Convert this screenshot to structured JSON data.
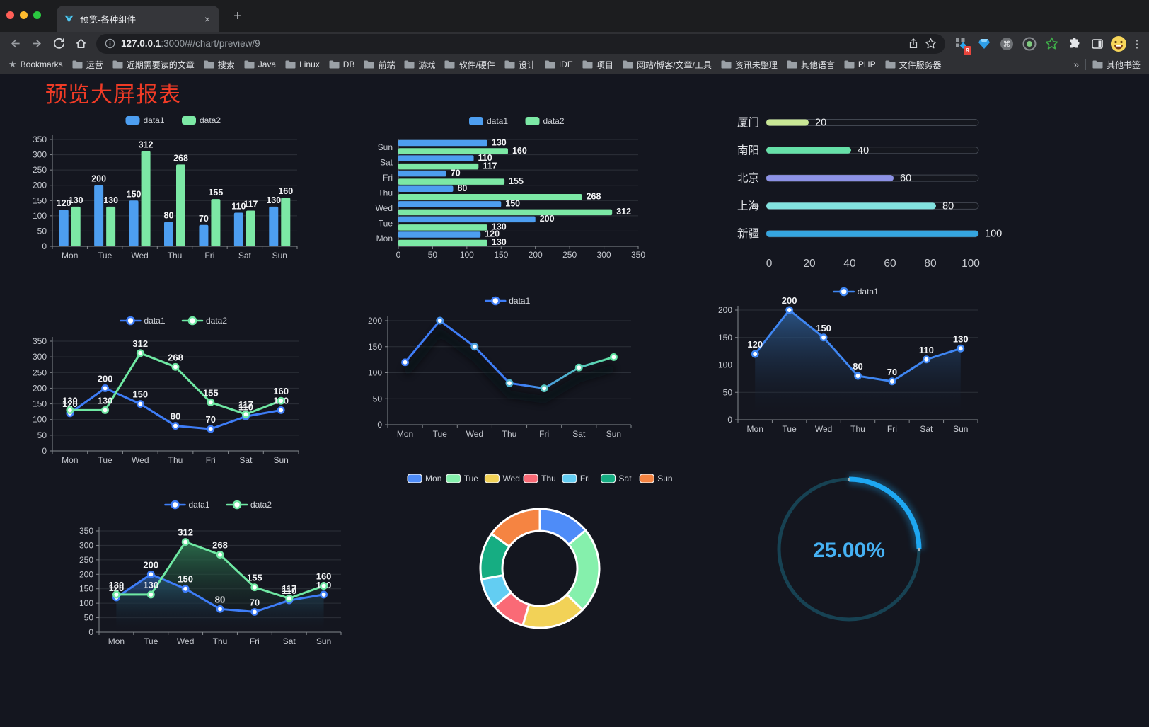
{
  "browser": {
    "tab_title": "预览-各种组件",
    "url_host": "127.0.0.1",
    "url_path": ":3000/#/chart/preview/9",
    "bookmarks_label": "Bookmarks",
    "bookmarks": [
      "运营",
      "近期需要读的文章",
      "搜索",
      "Java",
      "Linux",
      "DB",
      "前端",
      "游戏",
      "软件/硬件",
      "设计",
      "IDE",
      "项目",
      "网站/博客/文章/工具",
      "资讯未整理",
      "其他语言",
      "PHP",
      "文件服务器"
    ],
    "other_bookmarks": "其他书签",
    "extension_badge": "9"
  },
  "glyphs": {
    "close": "×",
    "plus": "+",
    "overflow": "»",
    "menu": "⋮",
    "bookmarks_star": "★",
    "command": "⌘"
  },
  "page": {
    "heading": "预览大屏报表"
  },
  "chart_data": [
    {
      "id": "grouped-bar",
      "type": "bar",
      "categories": [
        "Mon",
        "Tue",
        "Wed",
        "Thu",
        "Fri",
        "Sat",
        "Sun"
      ],
      "series": [
        {
          "name": "data1",
          "color": "#4D9EF0",
          "values": [
            120,
            200,
            150,
            80,
            70,
            110,
            130
          ]
        },
        {
          "name": "data2",
          "color": "#7CE8A5",
          "values": [
            130,
            130,
            312,
            268,
            155,
            117,
            160
          ]
        }
      ],
      "ylim": [
        0,
        350
      ],
      "ytick": 50,
      "legend": "top",
      "value_labels": true
    },
    {
      "id": "horizontal-bar",
      "type": "hbar",
      "categories": [
        "Mon",
        "Tue",
        "Wed",
        "Thu",
        "Fri",
        "Sat",
        "Sun"
      ],
      "category_display": "bottom-to-top",
      "series": [
        {
          "name": "data1",
          "color": "#4D9EF0",
          "values": [
            120,
            200,
            150,
            80,
            70,
            110,
            130
          ]
        },
        {
          "name": "data2",
          "color": "#7CE8A5",
          "values": [
            130,
            130,
            312,
            268,
            155,
            117,
            160
          ]
        }
      ],
      "xlim": [
        0,
        350
      ],
      "xtick": 50,
      "legend": "top",
      "value_labels": true
    },
    {
      "id": "city-progress",
      "type": "progress",
      "max": 100,
      "scale": [
        0,
        20,
        40,
        60,
        80,
        100
      ],
      "rows": [
        {
          "label": "厦门",
          "value": 20,
          "color": "#C9E795"
        },
        {
          "label": "南阳",
          "value": 40,
          "color": "#66E0A8"
        },
        {
          "label": "北京",
          "value": 60,
          "color": "#8D92E6"
        },
        {
          "label": "上海",
          "value": 80,
          "color": "#82E2DF"
        },
        {
          "label": "新疆",
          "value": 100,
          "color": "#35A5DF"
        }
      ]
    },
    {
      "id": "dual-line",
      "type": "line",
      "categories": [
        "Mon",
        "Tue",
        "Wed",
        "Thu",
        "Fri",
        "Sat",
        "Sun"
      ],
      "series": [
        {
          "name": "data1",
          "color": "#3E7DF7",
          "values": [
            120,
            200,
            150,
            80,
            70,
            110,
            130
          ]
        },
        {
          "name": "data2",
          "color": "#6FE8A3",
          "values": [
            130,
            130,
            312,
            268,
            155,
            117,
            160
          ]
        }
      ],
      "ylim": [
        0,
        350
      ],
      "ytick": 50,
      "legend": "top",
      "value_labels": true,
      "markers": true
    },
    {
      "id": "gradient-line",
      "type": "line",
      "categories": [
        "Mon",
        "Tue",
        "Wed",
        "Thu",
        "Fri",
        "Sat",
        "Sun"
      ],
      "series": [
        {
          "name": "data1",
          "color": "#3E7DF7",
          "gradient": [
            "#3E7DF7",
            "#62E6A2"
          ],
          "values": [
            120,
            200,
            150,
            80,
            70,
            110,
            130
          ]
        }
      ],
      "ylim": [
        0,
        200
      ],
      "ytick": 50,
      "legend": "top",
      "value_labels": false,
      "markers": true,
      "shadow": true
    },
    {
      "id": "area-line",
      "type": "line",
      "categories": [
        "Mon",
        "Tue",
        "Wed",
        "Thu",
        "Fri",
        "Sat",
        "Sun"
      ],
      "series": [
        {
          "name": "data1",
          "color": "#3F86F2",
          "area_from": "#2E5E96",
          "values": [
            120,
            200,
            150,
            80,
            70,
            110,
            130
          ]
        }
      ],
      "ylim": [
        0,
        200
      ],
      "ytick": 50,
      "legend": "top",
      "value_labels": true,
      "markers": true
    },
    {
      "id": "dual-area-line",
      "type": "line",
      "categories": [
        "Mon",
        "Tue",
        "Wed",
        "Thu",
        "Fri",
        "Sat",
        "Sun"
      ],
      "series": [
        {
          "name": "data1",
          "color": "#3E7DF7",
          "area_from": "#2B5C9E",
          "values": [
            120,
            200,
            150,
            80,
            70,
            110,
            130
          ]
        },
        {
          "name": "data2",
          "color": "#6FE8A3",
          "area_from": "#2E7A52",
          "values": [
            130,
            130,
            312,
            268,
            155,
            117,
            160
          ]
        }
      ],
      "ylim": [
        0,
        350
      ],
      "ytick": 50,
      "legend": "top",
      "value_labels": true,
      "markers": true
    },
    {
      "id": "weekday-donut",
      "type": "pie",
      "categories": [
        "Mon",
        "Tue",
        "Wed",
        "Thu",
        "Fri",
        "Sat",
        "Sun"
      ],
      "values": [
        120,
        200,
        150,
        80,
        70,
        110,
        130
      ],
      "colors": [
        "#4E8CF8",
        "#85F0AC",
        "#F2D257",
        "#FA6A76",
        "#63CDF2",
        "#16AD82",
        "#F58442"
      ],
      "inner_radius_ratio": 0.63,
      "legend": "top"
    },
    {
      "id": "percent-gauge",
      "type": "gauge",
      "value_label": "25.00%",
      "percent": 25,
      "color": "#1EA7F2",
      "track_color": "#174253",
      "text_color": "#46B2F4"
    }
  ]
}
